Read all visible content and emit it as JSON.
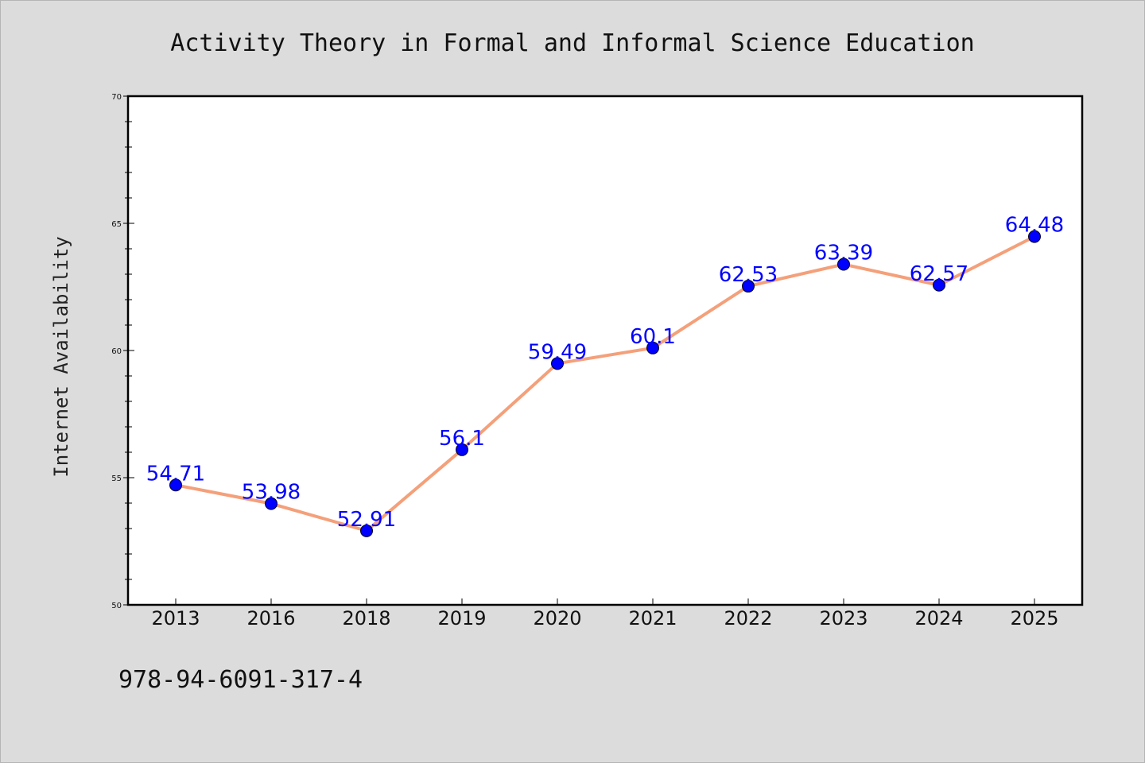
{
  "chart_data": {
    "type": "line",
    "title": "Activity Theory in Formal and Informal Science Education",
    "xlabel": "",
    "ylabel": "Internet Availability",
    "categories": [
      "2013",
      "2016",
      "2018",
      "2019",
      "2020",
      "2021",
      "2022",
      "2023",
      "2024",
      "2025"
    ],
    "series": [
      {
        "values": [
          54.71,
          53.98,
          52.91,
          56.1,
          59.49,
          60.1,
          62.53,
          63.39,
          62.57,
          64.48
        ],
        "labels": [
          "54.71",
          "53.98",
          "52.91",
          "56.1",
          "59.49",
          "60.1",
          "62.53",
          "63.39",
          "62.57",
          "64.48"
        ]
      }
    ],
    "ylim": [
      50,
      70
    ],
    "yticks": [
      "50",
      "55",
      "60",
      "65",
      "70"
    ],
    "grid": false,
    "legend": "none",
    "colors": {
      "line": "#f4a07a",
      "marker": "#0000ff",
      "data_label": "#0000ff",
      "figure_bg": "#dcdcdc",
      "plot_bg": "#ffffff"
    }
  },
  "footer": {
    "isbn": "978-94-6091-317-4"
  }
}
